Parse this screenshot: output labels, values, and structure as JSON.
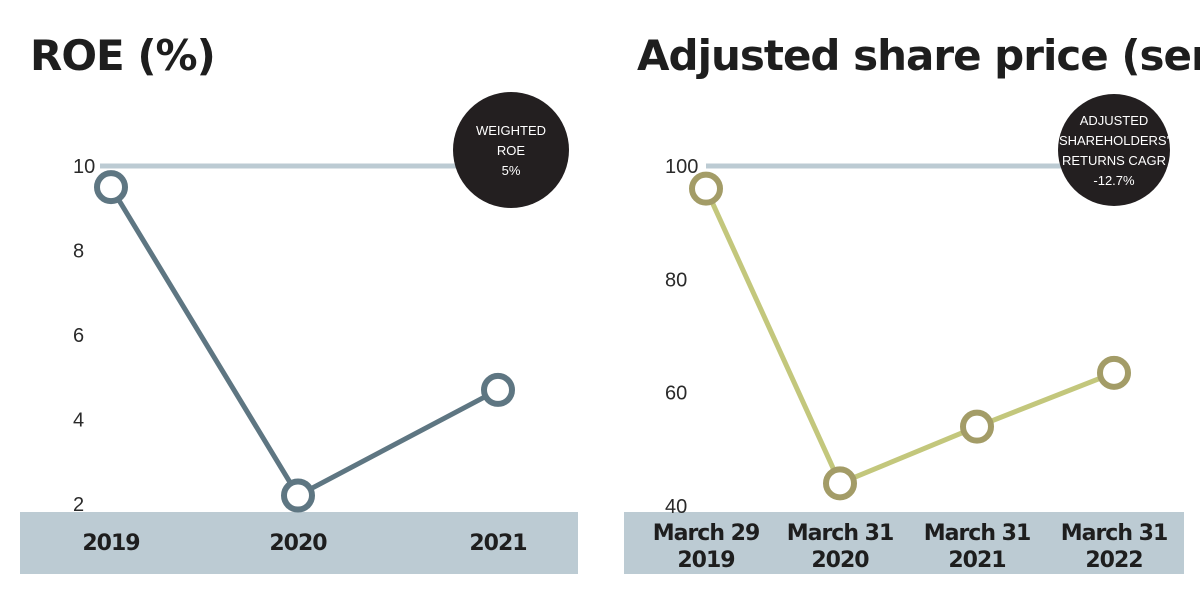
{
  "chart_data": [
    {
      "type": "line",
      "title": "ROE (%)",
      "categories": [
        "2019",
        "2020",
        "2021"
      ],
      "values": [
        9.5,
        2.2,
        4.7
      ],
      "yticks": [
        2,
        4,
        6,
        8,
        10
      ],
      "ylim": [
        2,
        10
      ],
      "reference_value": 10,
      "badge": [
        "WEIGHTED",
        "ROE",
        "5%"
      ],
      "line_color": "#5e7682",
      "reference_color": "#bccbd3",
      "band_color": "#bccbd3",
      "badge_color": "#231f20"
    },
    {
      "type": "line",
      "title": "Adjusted share price (sen)",
      "categories": [
        [
          "March 29",
          "2019"
        ],
        [
          "March 31",
          "2020"
        ],
        [
          "March 31",
          "2021"
        ],
        [
          "March 31",
          "2022"
        ]
      ],
      "values": [
        96,
        44,
        54,
        63.5
      ],
      "yticks": [
        40,
        60,
        80,
        100
      ],
      "ylim": [
        40,
        100
      ],
      "reference_value": 100,
      "badge": [
        "ADJUSTED",
        "SHAREHOLDERS'",
        "RETURNS CAGR",
        "-12.7%"
      ],
      "line_color": "#c3c77c",
      "marker_color": "#a39c67",
      "reference_color": "#bccbd3",
      "band_color": "#bccbd3",
      "badge_color": "#231f20"
    }
  ]
}
